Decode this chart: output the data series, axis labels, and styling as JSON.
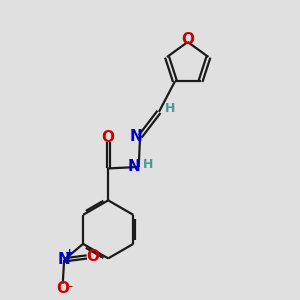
{
  "background_color": "#e0e0e0",
  "bond_color": "#1a1a1a",
  "bond_width": 1.6,
  "atom_colors": {
    "O": "#cc0000",
    "N": "#0000cc",
    "H": "#4a9999",
    "C": "#1a1a1a"
  },
  "figsize": [
    3.0,
    3.0
  ],
  "dpi": 100,
  "xlim": [
    0,
    10
  ],
  "ylim": [
    0,
    10
  ]
}
